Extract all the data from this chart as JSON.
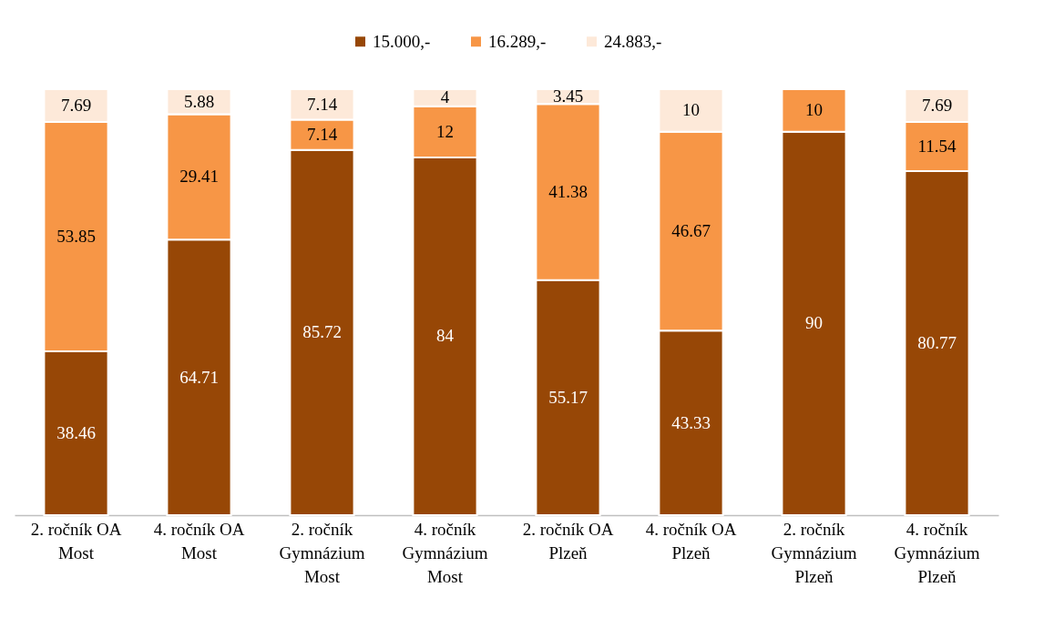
{
  "chart_data": {
    "type": "bar",
    "stacked": true,
    "data_labels": true,
    "legend": "top",
    "categories": [
      "2. ročník OA Most",
      "4. ročník OA Most",
      "2. ročník Gymnázium Most",
      "4. ročník Gymnázium Most",
      "2. ročník OA Plzeň",
      "4. ročník OA Plzeň",
      "2. ročník Gymnázium Plzeň",
      "4. ročník Gymnázium Plzeň"
    ],
    "series": [
      {
        "name": "15.000,-",
        "color": "#974706",
        "values": [
          38.46,
          64.71,
          85.72,
          84,
          55.17,
          43.33,
          90,
          80.77
        ]
      },
      {
        "name": "16.289,-",
        "color": "#f79646",
        "values": [
          53.85,
          29.41,
          7.14,
          12,
          41.38,
          46.67,
          10,
          11.54
        ]
      },
      {
        "name": "24.883,-",
        "color": "#fde9d9",
        "values": [
          7.69,
          5.88,
          7.14,
          4,
          3.45,
          10,
          null,
          7.69
        ]
      }
    ]
  }
}
